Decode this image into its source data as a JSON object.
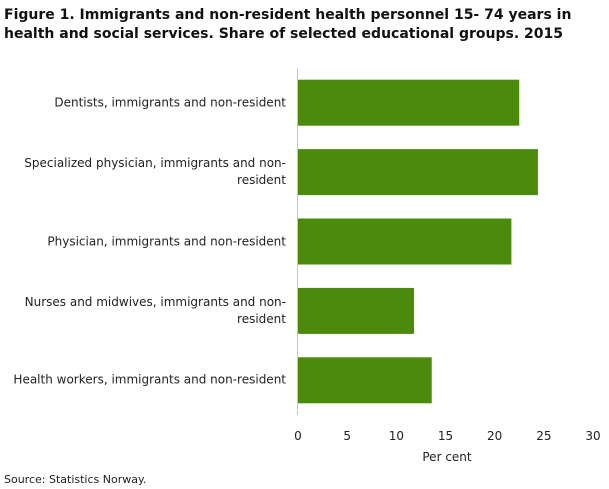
{
  "chart_data": {
    "type": "barh",
    "title": "Figure 1. Immigrants and non-resident health personnel 15- 74 years in health and social services. Share of selected educational groups. 2015",
    "categories": [
      "Dentists, immigrants and non-resident",
      "Specialized physician, immigrants and non-resident",
      "Physician, immigrants and non-resident",
      "Nurses and midwives, immigrants and non-resident",
      "Health workers, immigrants and non-resident"
    ],
    "values": [
      22.5,
      24.4,
      21.7,
      11.8,
      13.6
    ],
    "color": "#4c8a0b",
    "xlim": [
      0,
      30
    ],
    "xticks": [
      0,
      5,
      10,
      15,
      20,
      25,
      30
    ],
    "xlabel": "Per cent",
    "source": "Source: Statistics Norway."
  }
}
